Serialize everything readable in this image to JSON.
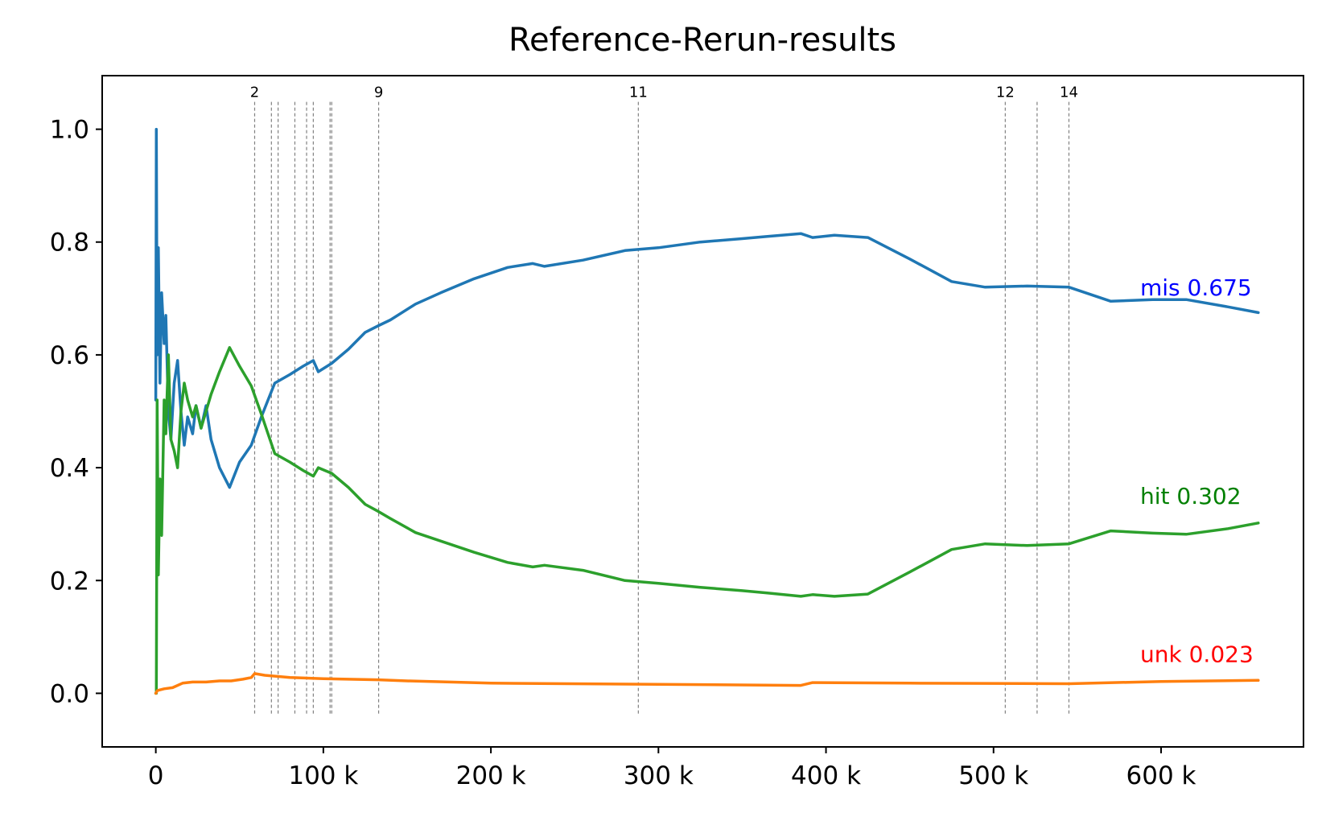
{
  "chart_data": {
    "type": "line",
    "title": "Reference-Rerun-results",
    "xlabel": "",
    "ylabel": "",
    "xlim": [
      -32000,
      685000
    ],
    "ylim": [
      -0.095,
      1.095
    ],
    "grid": false,
    "x_ticks": [
      {
        "value": 0,
        "label": "0"
      },
      {
        "value": 100000,
        "label": "100 k"
      },
      {
        "value": 200000,
        "label": "200 k"
      },
      {
        "value": 300000,
        "label": "300 k"
      },
      {
        "value": 400000,
        "label": "400 k"
      },
      {
        "value": 500000,
        "label": "500 k"
      },
      {
        "value": 600000,
        "label": "600 k"
      }
    ],
    "y_ticks": [
      {
        "value": 0.0,
        "label": "0.0"
      },
      {
        "value": 0.2,
        "label": "0.2"
      },
      {
        "value": 0.4,
        "label": "0.4"
      },
      {
        "value": 0.6,
        "label": "0.6"
      },
      {
        "value": 0.8,
        "label": "0.8"
      },
      {
        "value": 1.0,
        "label": "1.0"
      }
    ],
    "event_lines": [
      {
        "x": 59000,
        "label": "2"
      },
      {
        "x": 69000,
        "label": ""
      },
      {
        "x": 73000,
        "label": ""
      },
      {
        "x": 83000,
        "label": ""
      },
      {
        "x": 90000,
        "label": ""
      },
      {
        "x": 94000,
        "label": ""
      },
      {
        "x": 104000,
        "label": ""
      },
      {
        "x": 105000,
        "label": ""
      },
      {
        "x": 133000,
        "label": "9"
      },
      {
        "x": 288000,
        "label": "11"
      },
      {
        "x": 507000,
        "label": "12"
      },
      {
        "x": 526000,
        "label": ""
      },
      {
        "x": 545000,
        "label": "14"
      }
    ],
    "series": [
      {
        "key": "mis",
        "color": "#1f77b4",
        "end_label": {
          "text": "mis 0.675",
          "color": "#0000ff",
          "y": 0.72
        },
        "points": [
          [
            0,
            0.52
          ],
          [
            300,
            1.0
          ],
          [
            800,
            0.6
          ],
          [
            1500,
            0.79
          ],
          [
            2500,
            0.55
          ],
          [
            3500,
            0.71
          ],
          [
            5000,
            0.62
          ],
          [
            6000,
            0.67
          ],
          [
            7500,
            0.5
          ],
          [
            9000,
            0.45
          ],
          [
            11000,
            0.55
          ],
          [
            13000,
            0.59
          ],
          [
            15000,
            0.5
          ],
          [
            17000,
            0.44
          ],
          [
            19000,
            0.49
          ],
          [
            22000,
            0.46
          ],
          [
            24000,
            0.51
          ],
          [
            27000,
            0.47
          ],
          [
            30000,
            0.51
          ],
          [
            33000,
            0.45
          ],
          [
            38000,
            0.4
          ],
          [
            44000,
            0.365
          ],
          [
            50000,
            0.41
          ],
          [
            57000,
            0.44
          ],
          [
            63000,
            0.49
          ],
          [
            67000,
            0.52
          ],
          [
            71000,
            0.55
          ],
          [
            80000,
            0.565
          ],
          [
            88000,
            0.58
          ],
          [
            94000,
            0.59
          ],
          [
            97000,
            0.57
          ],
          [
            105000,
            0.585
          ],
          [
            115000,
            0.61
          ],
          [
            125000,
            0.64
          ],
          [
            133000,
            0.652
          ],
          [
            140000,
            0.662
          ],
          [
            155000,
            0.69
          ],
          [
            170000,
            0.71
          ],
          [
            190000,
            0.735
          ],
          [
            210000,
            0.755
          ],
          [
            225000,
            0.762
          ],
          [
            232000,
            0.757
          ],
          [
            255000,
            0.768
          ],
          [
            280000,
            0.785
          ],
          [
            300000,
            0.79
          ],
          [
            325000,
            0.8
          ],
          [
            350000,
            0.806
          ],
          [
            365000,
            0.81
          ],
          [
            385000,
            0.815
          ],
          [
            392000,
            0.808
          ],
          [
            405000,
            0.812
          ],
          [
            425000,
            0.808
          ],
          [
            450000,
            0.77
          ],
          [
            475000,
            0.73
          ],
          [
            495000,
            0.72
          ],
          [
            520000,
            0.722
          ],
          [
            545000,
            0.72
          ],
          [
            570000,
            0.695
          ],
          [
            595000,
            0.698
          ],
          [
            615000,
            0.698
          ],
          [
            640000,
            0.685
          ],
          [
            658000,
            0.675
          ]
        ]
      },
      {
        "key": "hit",
        "color": "#2ca02c",
        "end_label": {
          "text": "hit 0.302",
          "color": "#008000",
          "y": 0.35
        },
        "points": [
          [
            0,
            0.0
          ],
          [
            300,
            0.0
          ],
          [
            800,
            0.52
          ],
          [
            1500,
            0.21
          ],
          [
            2500,
            0.38
          ],
          [
            3500,
            0.28
          ],
          [
            5000,
            0.52
          ],
          [
            6000,
            0.46
          ],
          [
            7500,
            0.6
          ],
          [
            9000,
            0.45
          ],
          [
            11000,
            0.43
          ],
          [
            13000,
            0.4
          ],
          [
            15000,
            0.5
          ],
          [
            17000,
            0.55
          ],
          [
            19000,
            0.52
          ],
          [
            22000,
            0.49
          ],
          [
            24000,
            0.51
          ],
          [
            27000,
            0.47
          ],
          [
            30000,
            0.5
          ],
          [
            33000,
            0.53
          ],
          [
            38000,
            0.57
          ],
          [
            44000,
            0.613
          ],
          [
            50000,
            0.58
          ],
          [
            57000,
            0.545
          ],
          [
            63000,
            0.495
          ],
          [
            67000,
            0.46
          ],
          [
            71000,
            0.425
          ],
          [
            80000,
            0.41
          ],
          [
            88000,
            0.395
          ],
          [
            94000,
            0.385
          ],
          [
            97000,
            0.4
          ],
          [
            105000,
            0.39
          ],
          [
            115000,
            0.365
          ],
          [
            125000,
            0.335
          ],
          [
            133000,
            0.322
          ],
          [
            140000,
            0.31
          ],
          [
            155000,
            0.285
          ],
          [
            170000,
            0.27
          ],
          [
            190000,
            0.25
          ],
          [
            210000,
            0.232
          ],
          [
            225000,
            0.224
          ],
          [
            232000,
            0.227
          ],
          [
            255000,
            0.218
          ],
          [
            280000,
            0.2
          ],
          [
            300000,
            0.195
          ],
          [
            325000,
            0.188
          ],
          [
            350000,
            0.182
          ],
          [
            365000,
            0.178
          ],
          [
            385000,
            0.172
          ],
          [
            392000,
            0.175
          ],
          [
            405000,
            0.172
          ],
          [
            425000,
            0.176
          ],
          [
            450000,
            0.215
          ],
          [
            475000,
            0.255
          ],
          [
            495000,
            0.265
          ],
          [
            520000,
            0.262
          ],
          [
            545000,
            0.265
          ],
          [
            570000,
            0.288
          ],
          [
            595000,
            0.284
          ],
          [
            615000,
            0.282
          ],
          [
            640000,
            0.292
          ],
          [
            658000,
            0.302
          ]
        ]
      },
      {
        "key": "unk",
        "color": "#ff7f0e",
        "end_label": {
          "text": "unk 0.023",
          "color": "#ff0000",
          "y": 0.07
        },
        "points": [
          [
            0,
            0.0
          ],
          [
            1000,
            0.005
          ],
          [
            5000,
            0.008
          ],
          [
            10000,
            0.01
          ],
          [
            16000,
            0.018
          ],
          [
            22000,
            0.02
          ],
          [
            30000,
            0.02
          ],
          [
            38000,
            0.022
          ],
          [
            45000,
            0.022
          ],
          [
            52000,
            0.025
          ],
          [
            57000,
            0.028
          ],
          [
            59000,
            0.035
          ],
          [
            65000,
            0.032
          ],
          [
            80000,
            0.028
          ],
          [
            100000,
            0.026
          ],
          [
            133000,
            0.024
          ],
          [
            150000,
            0.022
          ],
          [
            200000,
            0.018
          ],
          [
            300000,
            0.016
          ],
          [
            385000,
            0.014
          ],
          [
            392000,
            0.019
          ],
          [
            450000,
            0.018
          ],
          [
            545000,
            0.017
          ],
          [
            600000,
            0.021
          ],
          [
            658000,
            0.023
          ]
        ]
      }
    ]
  }
}
